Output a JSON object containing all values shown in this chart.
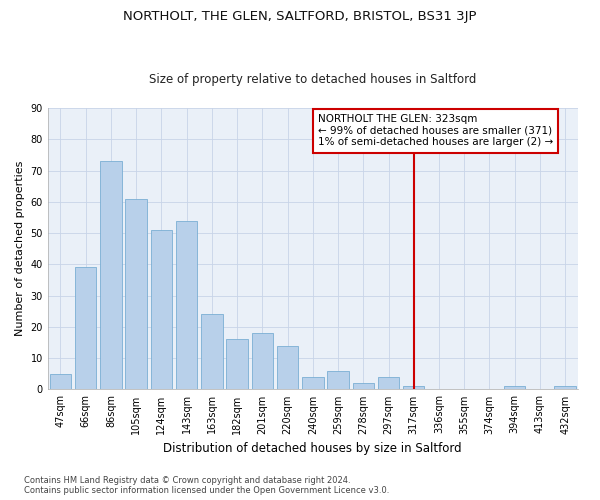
{
  "title": "NORTHOLT, THE GLEN, SALTFORD, BRISTOL, BS31 3JP",
  "subtitle": "Size of property relative to detached houses in Saltford",
  "xlabel": "Distribution of detached houses by size in Saltford",
  "ylabel": "Number of detached properties",
  "categories": [
    "47sqm",
    "66sqm",
    "86sqm",
    "105sqm",
    "124sqm",
    "143sqm",
    "163sqm",
    "182sqm",
    "201sqm",
    "220sqm",
    "240sqm",
    "259sqm",
    "278sqm",
    "297sqm",
    "317sqm",
    "336sqm",
    "355sqm",
    "374sqm",
    "394sqm",
    "413sqm",
    "432sqm"
  ],
  "values": [
    5,
    39,
    73,
    61,
    51,
    54,
    24,
    16,
    18,
    14,
    4,
    6,
    2,
    4,
    1,
    0,
    0,
    0,
    1,
    0,
    1
  ],
  "bar_color": "#b8d0ea",
  "bar_edge_color": "#7aafd4",
  "vline_x": 14,
  "vline_color": "#cc0000",
  "annotation_text": "NORTHOLT THE GLEN: 323sqm\n← 99% of detached houses are smaller (371)\n1% of semi-detached houses are larger (2) →",
  "annotation_box_color": "#cc0000",
  "ylim": [
    0,
    90
  ],
  "yticks": [
    0,
    10,
    20,
    30,
    40,
    50,
    60,
    70,
    80,
    90
  ],
  "grid_color": "#c8d4e8",
  "background_color": "#eaf0f8",
  "footnote": "Contains HM Land Registry data © Crown copyright and database right 2024.\nContains public sector information licensed under the Open Government Licence v3.0.",
  "title_fontsize": 9.5,
  "subtitle_fontsize": 8.5,
  "xlabel_fontsize": 8.5,
  "ylabel_fontsize": 8,
  "tick_fontsize": 7,
  "annotation_fontsize": 7.5,
  "footnote_fontsize": 6
}
